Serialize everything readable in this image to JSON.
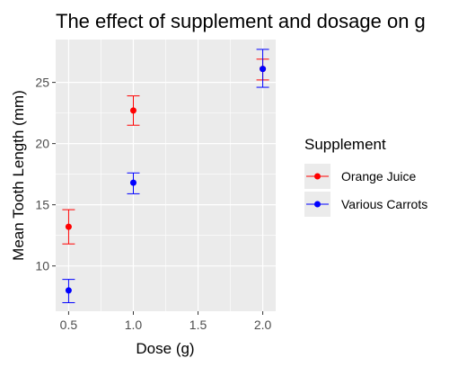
{
  "chart_data": {
    "type": "scatter",
    "title": "The effect of supplement and dosage on g",
    "xlabel": "Dose (g)",
    "ylabel": "Mean Tooth Length (mm)",
    "xlim": [
      0.4,
      2.1
    ],
    "ylim": [
      6.3,
      28.5
    ],
    "x_ticks": [
      0.5,
      1.0,
      1.5,
      2.0
    ],
    "x_tick_labels": [
      "0.5",
      "1.0",
      "1.5",
      "2.0"
    ],
    "y_ticks": [
      10,
      15,
      20,
      25
    ],
    "y_tick_labels": [
      "10",
      "15",
      "20",
      "25"
    ],
    "grid": true,
    "background": "#ebebeb",
    "legend": {
      "title": "Supplement",
      "position": "right"
    },
    "error_bars": true,
    "series": [
      {
        "name": "Orange Juice",
        "color": "#ff0000",
        "x": [
          0.5,
          1.0,
          2.0
        ],
        "y": [
          13.2,
          22.7,
          26.1
        ],
        "err_low": [
          11.8,
          21.5,
          25.2
        ],
        "err_high": [
          14.6,
          23.9,
          26.9
        ]
      },
      {
        "name": "Various Carrots",
        "color": "#0000ff",
        "x": [
          0.5,
          1.0,
          2.0
        ],
        "y": [
          8.0,
          16.8,
          26.1
        ],
        "err_low": [
          7.0,
          15.9,
          24.6
        ],
        "err_high": [
          8.9,
          17.6,
          27.7
        ]
      }
    ]
  }
}
